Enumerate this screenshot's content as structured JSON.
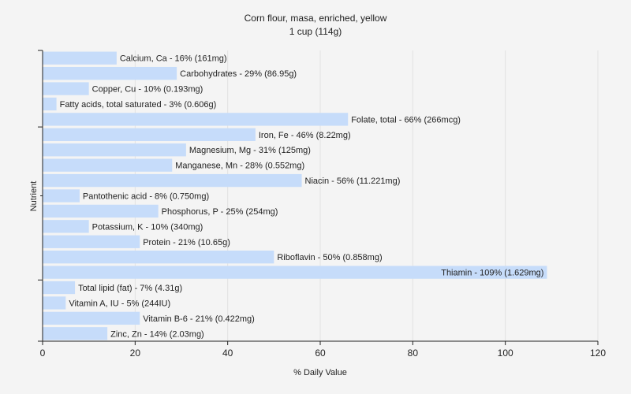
{
  "chart_data": {
    "type": "bar",
    "orientation": "horizontal",
    "title": "Corn flour, masa, enriched, yellow",
    "subtitle": "1 cup (114g)",
    "xlabel": "% Daily Value",
    "ylabel": "Nutrient",
    "xlim": [
      0,
      120
    ],
    "xticks": [
      0,
      20,
      40,
      60,
      80,
      100,
      120
    ],
    "grid": true,
    "bar_color": "#c6dcfa",
    "categories": [
      "Calcium, Ca",
      "Carbohydrates",
      "Copper, Cu",
      "Fatty acids, total saturated",
      "Folate, total",
      "Iron, Fe",
      "Magnesium, Mg",
      "Manganese, Mn",
      "Niacin",
      "Pantothenic acid",
      "Phosphorus, P",
      "Potassium, K",
      "Protein",
      "Riboflavin",
      "Thiamin",
      "Total lipid (fat)",
      "Vitamin A, IU",
      "Vitamin B-6",
      "Zinc, Zn"
    ],
    "values": [
      16,
      29,
      10,
      3,
      66,
      46,
      31,
      28,
      56,
      8,
      25,
      10,
      21,
      50,
      109,
      7,
      5,
      21,
      14
    ],
    "labels": [
      "Calcium, Ca - 16% (161mg)",
      "Carbohydrates - 29% (86.95g)",
      "Copper, Cu - 10% (0.193mg)",
      "Fatty acids, total saturated - 3% (0.606g)",
      "Folate, total - 66% (266mcg)",
      "Iron, Fe - 46% (8.22mg)",
      "Magnesium, Mg - 31% (125mg)",
      "Manganese, Mn - 28% (0.552mg)",
      "Niacin - 56% (11.221mg)",
      "Pantothenic acid - 8% (0.750mg)",
      "Phosphorus, P - 25% (254mg)",
      "Potassium, K - 10% (340mg)",
      "Protein - 21% (10.65g)",
      "Riboflavin - 50% (0.858mg)",
      "Thiamin - 109% (1.629mg)",
      "Total lipid (fat) - 7% (4.31g)",
      "Vitamin A, IU - 5% (244IU)",
      "Vitamin B-6 - 21% (0.422mg)",
      "Zinc, Zn - 14% (2.03mg)"
    ]
  }
}
